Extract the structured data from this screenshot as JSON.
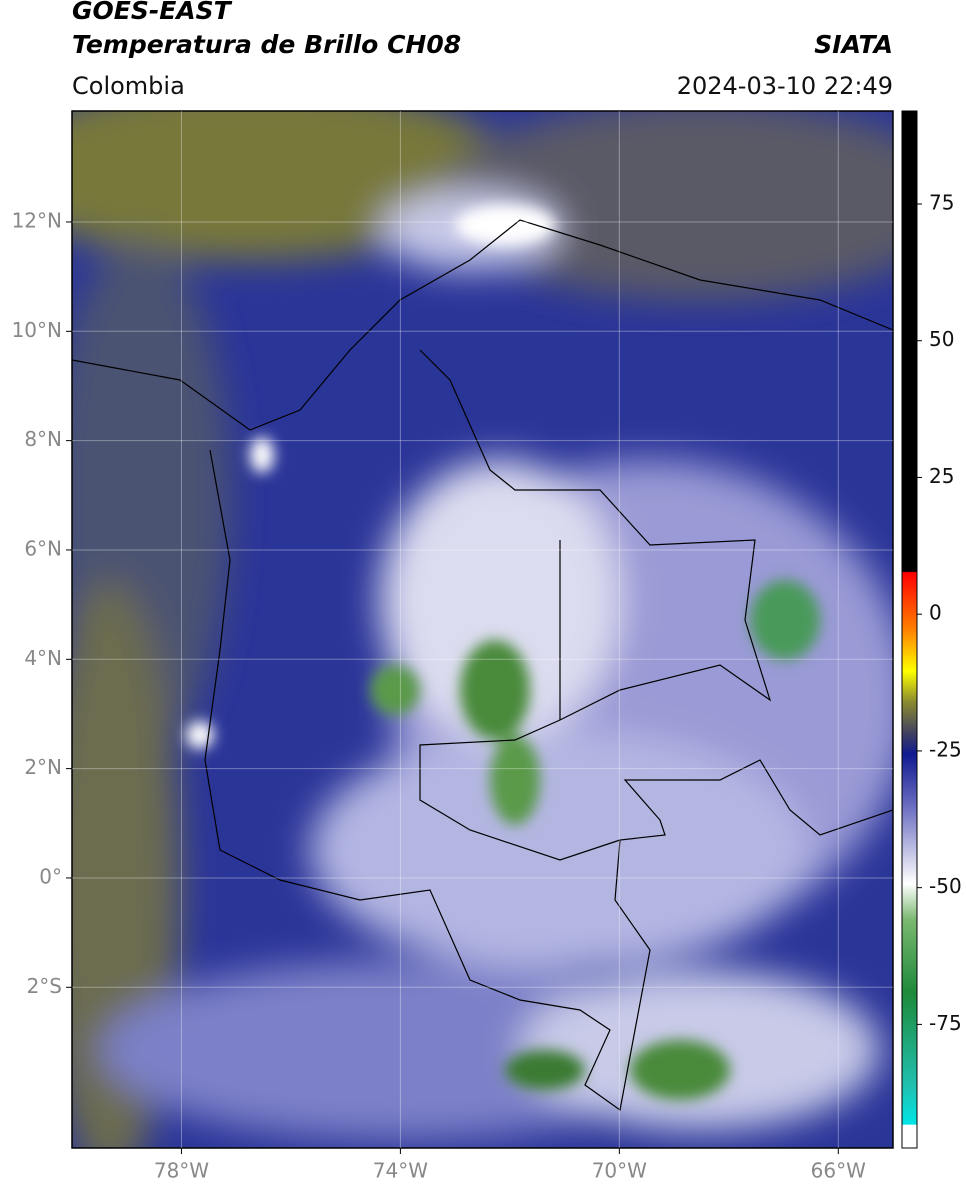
{
  "header": {
    "title": "GOES-EAST",
    "subtitle": "Temperatura de Brillo CH08",
    "region": "Colombia",
    "source": "SIATA",
    "datetime": "2024-03-10 22:49"
  },
  "map": {
    "xlim": [
      -80,
      -65
    ],
    "ylim": [
      -4.94,
      14.03
    ],
    "xticks": [
      {
        "value": -78,
        "label": "78°W"
      },
      {
        "value": -74,
        "label": "74°W"
      },
      {
        "value": -70,
        "label": "70°W"
      },
      {
        "value": -66,
        "label": "66°W"
      }
    ],
    "yticks": [
      {
        "value": 12,
        "label": "12°N"
      },
      {
        "value": 10,
        "label": "10°N"
      },
      {
        "value": 8,
        "label": "8°N"
      },
      {
        "value": 6,
        "label": "6°N"
      },
      {
        "value": 4,
        "label": "4°N"
      },
      {
        "value": 2,
        "label": "2°N"
      },
      {
        "value": 0,
        "label": "0°"
      },
      {
        "value": -2,
        "label": "2°S"
      }
    ],
    "grid": true
  },
  "colorbar": {
    "lim": [
      -97.6,
      92
    ],
    "ticks": [
      75,
      50,
      25,
      0,
      -25,
      -50,
      -75
    ]
  }
}
